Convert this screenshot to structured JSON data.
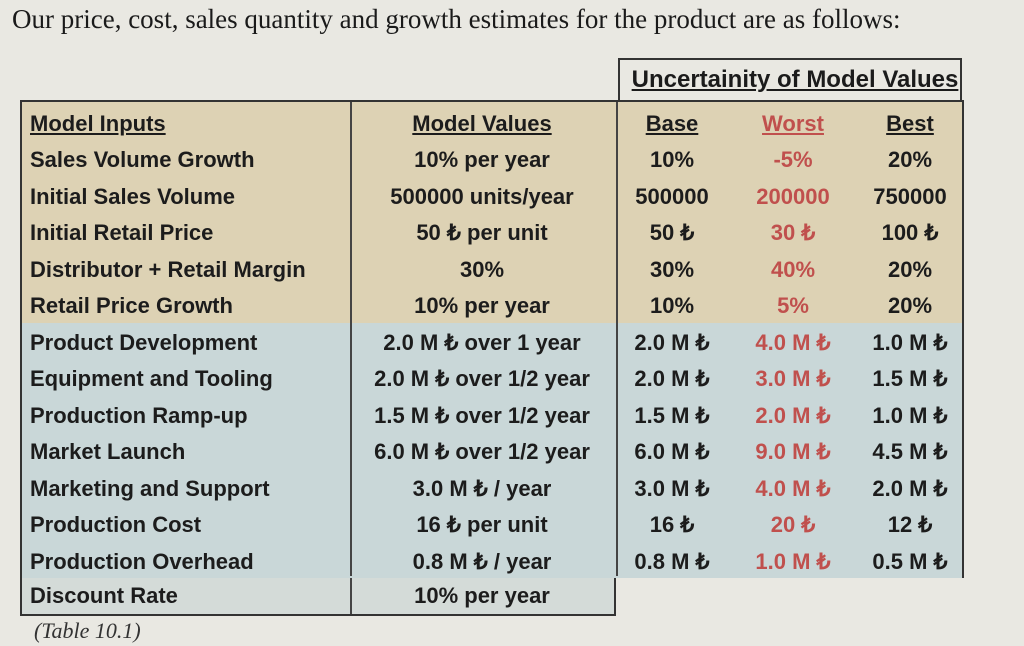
{
  "heading": "Our price, cost, sales quantity and growth estimates for the product are as follows:",
  "uncertainty_title": "Uncertainity of Model Values",
  "headers": {
    "input": "Model Inputs",
    "value": "Model Values",
    "base": "Base",
    "worst": "Worst",
    "best": "Best"
  },
  "rows": [
    {
      "input": "Sales Volume Growth",
      "value": "10% per year",
      "base": "10%",
      "worst": "-5%",
      "best": "20%"
    },
    {
      "input": "Initial Sales Volume",
      "value": "500000 units/year",
      "base": "500000",
      "worst": "200000",
      "best": "750000"
    },
    {
      "input": "Initial Retail Price",
      "value": "50 ₺ per unit",
      "base": "50 ₺",
      "worst": "30 ₺",
      "best": "100 ₺"
    },
    {
      "input": "Distributor + Retail Margin",
      "value": "30%",
      "base": "30%",
      "worst": "40%",
      "best": "20%"
    },
    {
      "input": "Retail Price Growth",
      "value": "10% per year",
      "base": "10%",
      "worst": "5%",
      "best": "20%"
    },
    {
      "input": "Product Development",
      "value": "2.0 M ₺ over 1 year",
      "base": "2.0 M ₺",
      "worst": "4.0 M ₺",
      "best": "1.0 M ₺"
    },
    {
      "input": "Equipment and Tooling",
      "value": "2.0 M ₺ over 1/2 year",
      "base": "2.0 M ₺",
      "worst": "3.0 M ₺",
      "best": "1.5 M ₺"
    },
    {
      "input": "Production Ramp-up",
      "value": "1.5 M ₺ over 1/2 year",
      "base": "1.5 M ₺",
      "worst": "2.0 M ₺",
      "best": "1.0 M ₺"
    },
    {
      "input": "Market Launch",
      "value": "6.0 M ₺ over 1/2 year",
      "base": "6.0 M ₺",
      "worst": "9.0 M ₺",
      "best": "4.5 M ₺"
    },
    {
      "input": "Marketing and Support",
      "value": "3.0 M ₺ / year",
      "base": "3.0 M ₺",
      "worst": "4.0 M ₺",
      "best": "2.0 M ₺"
    },
    {
      "input": "Production Cost",
      "value": "16 ₺ per unit",
      "base": "16 ₺",
      "worst": "20 ₺",
      "best": "12 ₺"
    },
    {
      "input": "Production Overhead",
      "value": "0.8 M ₺ / year",
      "base": "0.8 M ₺",
      "worst": "1.0 M ₺",
      "best": "0.5 M ₺"
    }
  ],
  "discount": {
    "input": "Discount Rate",
    "value": "10% per year"
  },
  "caption": "(Table 10.1)",
  "colors": {
    "worst_text": "#c0504d",
    "top_band": "#ddd2b4",
    "bottom_band": "#c9d7d8"
  }
}
